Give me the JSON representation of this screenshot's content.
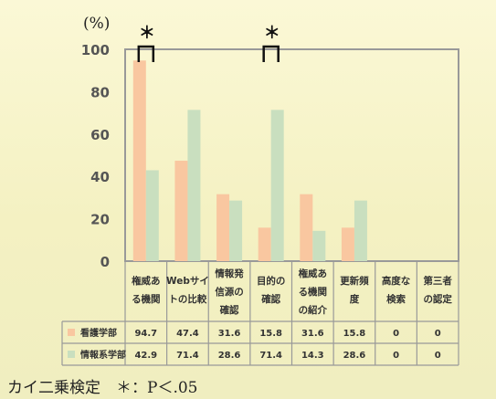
{
  "chart_data": {
    "type": "bar",
    "ylabel": "(%)",
    "ylim": [
      0,
      100
    ],
    "yticks": [
      0,
      20,
      40,
      60,
      80,
      100
    ],
    "categories": [
      [
        "権威あ",
        "る機関"
      ],
      [
        "Webサイ",
        "トの比較"
      ],
      [
        "情報発",
        "信源の",
        "確認"
      ],
      [
        "目的の",
        "確認"
      ],
      [
        "権威あ",
        "る機関",
        "の紹介"
      ],
      [
        "更新頻",
        "度"
      ],
      [
        "高度な",
        "検索"
      ],
      [
        "第三者",
        "の認定"
      ]
    ],
    "series": [
      {
        "name": "看護学部",
        "color": "#f9c7a0",
        "values": [
          94.7,
          47.4,
          31.6,
          15.8,
          31.6,
          15.8,
          0,
          0
        ],
        "labels": [
          "94.7",
          "47.4",
          "31.6",
          "15.8",
          "31.6",
          "15.8",
          "0",
          "0"
        ]
      },
      {
        "name": "情報系学部",
        "color": "#c9dfbf",
        "values": [
          42.9,
          71.4,
          28.6,
          71.4,
          14.3,
          28.6,
          0,
          0
        ],
        "labels": [
          "42.9",
          "71.4",
          "28.6",
          "71.4",
          "14.3",
          "28.6",
          "0",
          "0"
        ]
      }
    ],
    "significance": [
      {
        "category_index": 0,
        "symbol": "＊"
      },
      {
        "category_index": 3,
        "symbol": "＊"
      }
    ],
    "grid": false,
    "legend": "table-left"
  },
  "footnote": "カイ二乗検定　＊：P＜.05"
}
